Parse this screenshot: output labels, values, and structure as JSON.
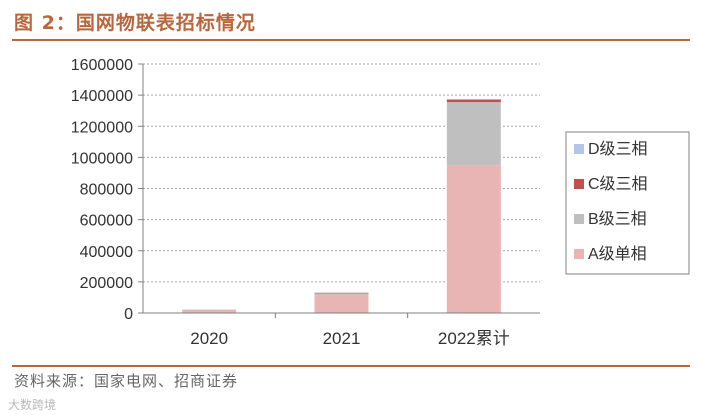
{
  "header": {
    "title": "图 2：国网物联表招标情况"
  },
  "footer": {
    "source": "资料来源：国家电网、招商证券",
    "watermark": "大数跨境"
  },
  "chart_data": {
    "type": "bar",
    "stacked": true,
    "categories": [
      "2020",
      "2021",
      "2022累计"
    ],
    "series": [
      {
        "name": "A级单相",
        "color": "#e8b4b4",
        "values": [
          20000,
          115000,
          950000
        ]
      },
      {
        "name": "B级三相",
        "color": "#bfbfbf",
        "values": [
          2000,
          14000,
          405000
        ]
      },
      {
        "name": "C级三相",
        "color": "#c0504d",
        "values": [
          0,
          1000,
          17000
        ]
      },
      {
        "name": "D级三相",
        "color": "#b4c6e7",
        "values": [
          0,
          0,
          2000
        ]
      }
    ],
    "ylim": [
      0,
      1600000
    ],
    "yticks": [
      "0",
      "200000",
      "400000",
      "600000",
      "800000",
      "1000000",
      "1200000",
      "1400000",
      "1600000"
    ],
    "legend_order": [
      "D级三相",
      "C级三相",
      "B级三相",
      "A级单相"
    ],
    "legend_position": "right",
    "grid": true
  }
}
